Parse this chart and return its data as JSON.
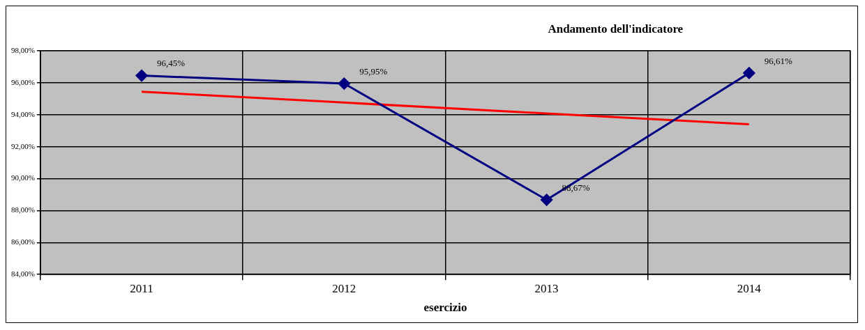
{
  "chart_data": {
    "type": "line",
    "title": "Andamento dell'indicatore",
    "xlabel": "esercizio",
    "categories": [
      "2011",
      "2012",
      "2013",
      "2014"
    ],
    "series": [
      {
        "color": "#000080",
        "values": [
          96.45,
          95.95,
          88.67,
          96.61
        ],
        "value_labels": [
          "96,45%",
          "95,95%",
          "88,67%",
          "96,61%"
        ],
        "marker": "diamond"
      },
      {
        "type": "line",
        "color": "#ff0000",
        "values": [
          95.44,
          94.76,
          94.08,
          93.4
        ],
        "marker": "none"
      }
    ],
    "ylim": [
      84,
      98
    ],
    "yticks": [
      {
        "value": 84,
        "label": "84,00%"
      },
      {
        "value": 86,
        "label": "86,00%"
      },
      {
        "value": 88,
        "label": "88,00%"
      },
      {
        "value": 90,
        "label": "90,00%"
      },
      {
        "value": 92,
        "label": "92,00%"
      },
      {
        "value": 94,
        "label": "94,00%"
      },
      {
        "value": 96,
        "label": "96,00%"
      },
      {
        "value": 98,
        "label": "98,00%"
      }
    ],
    "grid": true,
    "legend": false
  }
}
